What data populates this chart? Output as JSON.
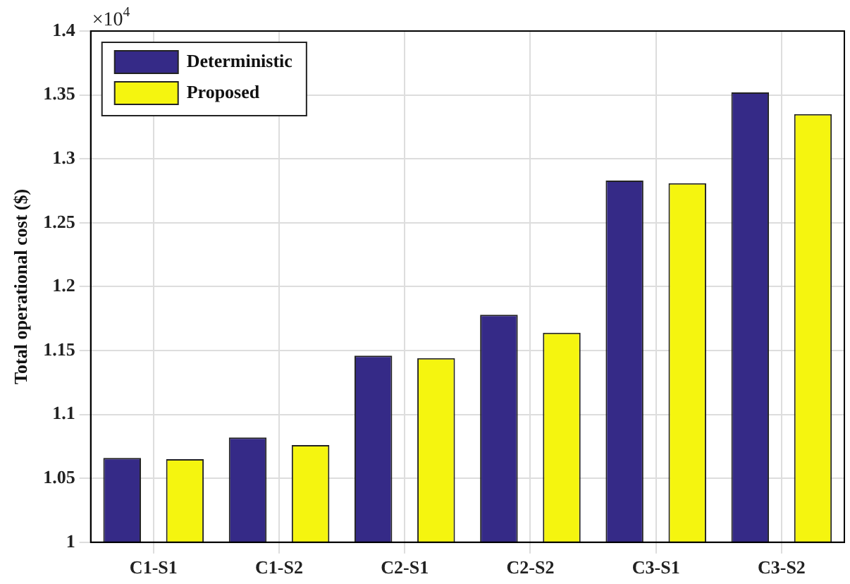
{
  "chart_data": {
    "type": "bar",
    "ylabel": "Total operational cost ($)",
    "annotations": [
      "×10$^{4}$"
    ],
    "categories": [
      "C1-S1",
      "C1-S2",
      "C2-S1",
      "C2-S2",
      "C3-S1",
      "C3-S2"
    ],
    "series": [
      {
        "name": "Deterministic",
        "color": "#352a87",
        "values": [
          1.066,
          1.082,
          1.146,
          1.178,
          1.283,
          1.352
        ]
      },
      {
        "name": "Proposed",
        "color": "#f5f50f",
        "values": [
          1.065,
          1.076,
          1.144,
          1.164,
          1.281,
          1.335
        ]
      }
    ],
    "ylim": [
      1,
      1.4
    ],
    "yticks": [
      1,
      1.05,
      1.1,
      1.15,
      1.2,
      1.25,
      1.3,
      1.35,
      1.4
    ],
    "grid": true,
    "legend": "top left"
  }
}
